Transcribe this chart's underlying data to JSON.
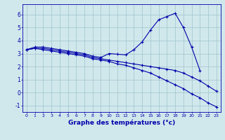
{
  "hours": [
    0,
    1,
    2,
    3,
    4,
    5,
    6,
    7,
    8,
    9,
    10,
    11,
    12,
    13,
    14,
    15,
    16,
    17,
    18,
    19,
    20,
    21,
    22,
    23
  ],
  "line1": [
    3.3,
    3.5,
    3.5,
    3.4,
    3.3,
    3.2,
    3.1,
    3.0,
    2.8,
    2.7,
    3.0,
    2.95,
    2.9,
    3.3,
    3.9,
    4.8,
    5.6,
    5.85,
    6.1,
    5.0,
    3.5,
    1.7,
    null,
    null
  ],
  "line2": [
    3.3,
    3.4,
    3.4,
    3.3,
    3.2,
    3.1,
    3.0,
    2.9,
    2.7,
    2.6,
    2.5,
    2.4,
    2.3,
    2.2,
    2.1,
    2.0,
    1.9,
    1.8,
    1.7,
    1.5,
    1.2,
    0.9,
    0.5,
    0.1
  ],
  "line3": [
    3.3,
    3.4,
    3.3,
    3.2,
    3.1,
    3.0,
    2.9,
    2.8,
    2.6,
    2.5,
    2.4,
    2.2,
    2.1,
    1.9,
    1.7,
    1.5,
    1.2,
    0.9,
    0.6,
    0.3,
    -0.1,
    -0.4,
    -0.8,
    -1.1
  ],
  "xlabel": "Graphe des températures (°c)",
  "ylim": [
    -1.5,
    6.8
  ],
  "xlim": [
    -0.5,
    23.5
  ],
  "yticks": [
    -1,
    0,
    1,
    2,
    3,
    4,
    5,
    6
  ],
  "xticks": [
    0,
    1,
    2,
    3,
    4,
    5,
    6,
    7,
    8,
    9,
    10,
    11,
    12,
    13,
    14,
    15,
    16,
    17,
    18,
    19,
    20,
    21,
    22,
    23
  ],
  "line_color": "#0000aa",
  "bg_color": "#d0e8ec",
  "grid_color": "#a0c4cc",
  "marker": "+"
}
